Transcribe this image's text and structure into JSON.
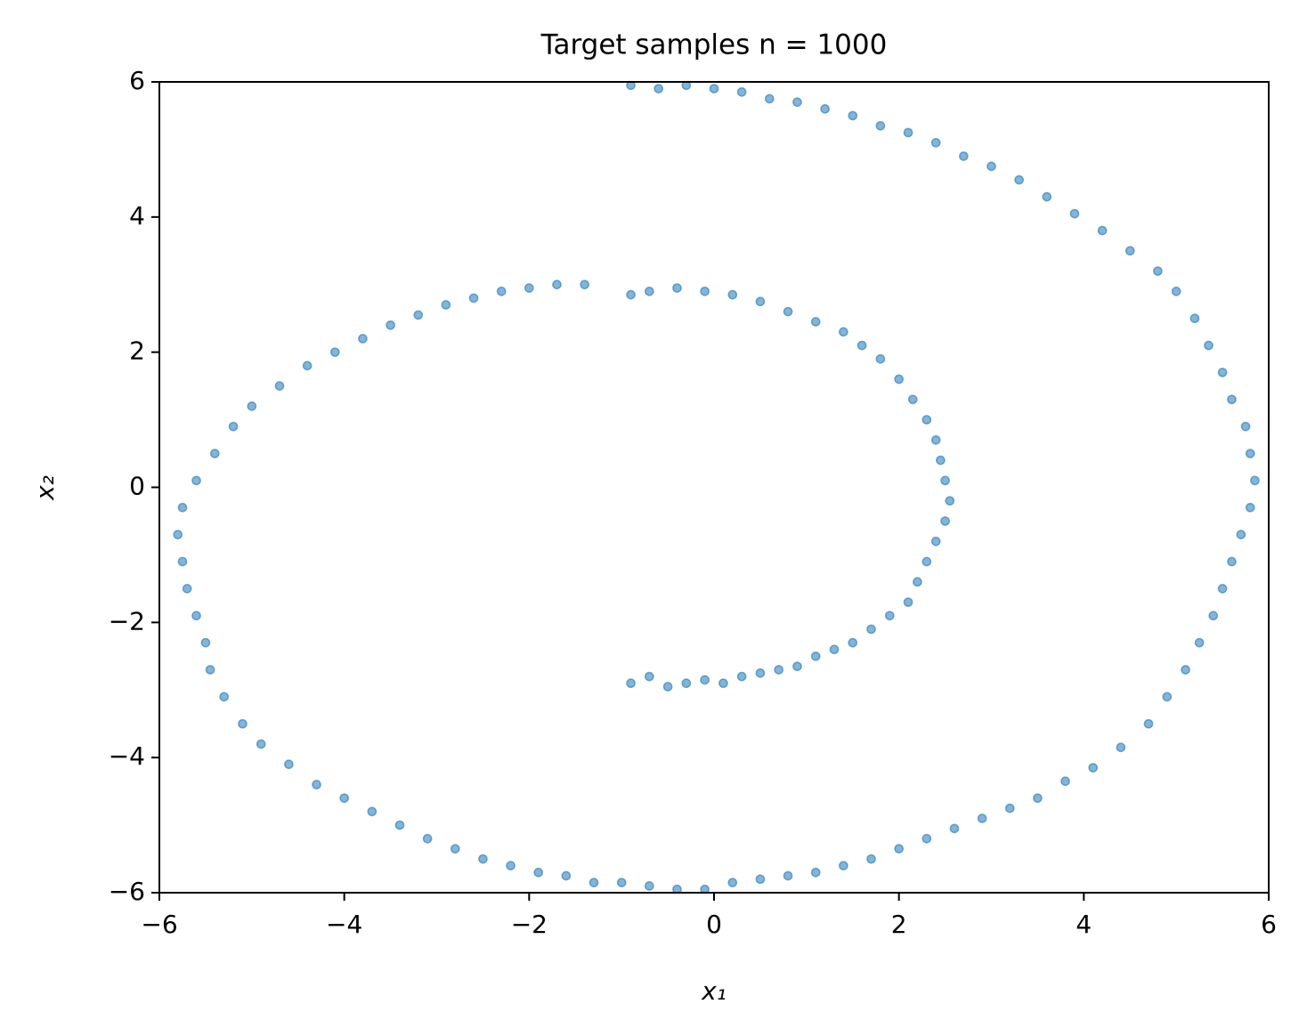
{
  "chart_data": {
    "type": "scatter",
    "title": "Target samples n = 1000",
    "xlabel": "x₁",
    "ylabel": "x₂",
    "xlim": [
      -6,
      6
    ],
    "ylim": [
      -6,
      6
    ],
    "xticks": [
      {
        "value": -6,
        "label": "−6"
      },
      {
        "value": -4,
        "label": "−4"
      },
      {
        "value": -2,
        "label": "−2"
      },
      0,
      2,
      4,
      6
    ],
    "yticks": [
      {
        "value": -6,
        "label": "−6"
      },
      {
        "value": -4,
        "label": "−4"
      },
      {
        "value": -2,
        "label": "−2"
      },
      0,
      2,
      4,
      6
    ],
    "color": "#1f77b4",
    "x": [
      -0.9,
      -0.7,
      -0.5,
      -0.3,
      -0.1,
      0.1,
      0.3,
      0.5,
      0.7,
      0.9,
      1.1,
      1.3,
      1.5,
      1.7,
      1.9,
      2.1,
      2.2,
      2.3,
      2.4,
      2.5,
      2.55,
      2.5,
      2.45,
      2.4,
      2.3,
      2.15,
      2.0,
      1.8,
      1.6,
      1.4,
      1.1,
      0.8,
      0.5,
      0.2,
      -0.1,
      -0.4,
      -0.7,
      -0.9,
      -1.4,
      -1.7,
      -2.0,
      -2.3,
      -2.6,
      -2.9,
      -3.2,
      -3.5,
      -3.8,
      -4.1,
      -4.4,
      -4.7,
      -5.0,
      -5.2,
      -5.4,
      -5.6,
      -5.75,
      -5.8,
      -5.75,
      -5.7,
      -5.6,
      -5.5,
      -5.45,
      -5.3,
      -5.1,
      -4.9,
      -4.6,
      -4.3,
      -4.0,
      -3.7,
      -3.4,
      -3.1,
      -2.8,
      -2.5,
      -2.2,
      -1.9,
      -1.6,
      -1.3,
      -1.0,
      -0.7,
      -0.4,
      -0.1,
      0.2,
      0.5,
      0.8,
      1.1,
      1.4,
      1.7,
      2.0,
      2.3,
      2.6,
      2.9,
      3.2,
      3.5,
      3.8,
      4.1,
      4.4,
      4.7,
      4.9,
      5.1,
      5.25,
      5.4,
      5.5,
      5.6,
      5.7,
      5.8,
      5.85,
      5.8,
      5.75,
      5.6,
      5.5,
      5.35,
      5.2,
      5.0,
      4.8,
      4.5,
      4.2,
      3.9,
      3.6,
      3.3,
      3.0,
      2.7,
      2.4,
      2.1,
      1.8,
      1.5,
      1.2,
      0.9,
      0.6,
      0.3,
      0.0,
      -0.3,
      -0.6,
      -0.9
    ],
    "values": [
      -2.9,
      -2.8,
      -2.95,
      -2.9,
      -2.85,
      -2.9,
      -2.8,
      -2.75,
      -2.7,
      -2.65,
      -2.5,
      -2.4,
      -2.3,
      -2.1,
      -1.9,
      -1.7,
      -1.4,
      -1.1,
      -0.8,
      -0.5,
      -0.2,
      0.1,
      0.4,
      0.7,
      1.0,
      1.3,
      1.6,
      1.9,
      2.1,
      2.3,
      2.45,
      2.6,
      2.75,
      2.85,
      2.9,
      2.95,
      2.9,
      2.85,
      3.0,
      3.0,
      2.95,
      2.9,
      2.8,
      2.7,
      2.55,
      2.4,
      2.2,
      2.0,
      1.8,
      1.5,
      1.2,
      0.9,
      0.5,
      0.1,
      -0.3,
      -0.7,
      -1.1,
      -1.5,
      -1.9,
      -2.3,
      -2.7,
      -3.1,
      -3.5,
      -3.8,
      -4.1,
      -4.4,
      -4.6,
      -4.8,
      -5.0,
      -5.2,
      -5.35,
      -5.5,
      -5.6,
      -5.7,
      -5.75,
      -5.85,
      -5.85,
      -5.9,
      -5.95,
      -5.95,
      -5.85,
      -5.8,
      -5.75,
      -5.7,
      -5.6,
      -5.5,
      -5.35,
      -5.2,
      -5.05,
      -4.9,
      -4.75,
      -4.6,
      -4.35,
      -4.15,
      -3.85,
      -3.5,
      -3.1,
      -2.7,
      -2.3,
      -1.9,
      -1.5,
      -1.1,
      -0.7,
      -0.3,
      0.1,
      0.5,
      0.9,
      1.3,
      1.7,
      2.1,
      2.5,
      2.9,
      3.2,
      3.5,
      3.8,
      4.05,
      4.3,
      4.55,
      4.75,
      4.9,
      5.1,
      5.25,
      5.35,
      5.5,
      5.6,
      5.7,
      5.75,
      5.85,
      5.9,
      5.95,
      5.9,
      5.95
    ]
  }
}
